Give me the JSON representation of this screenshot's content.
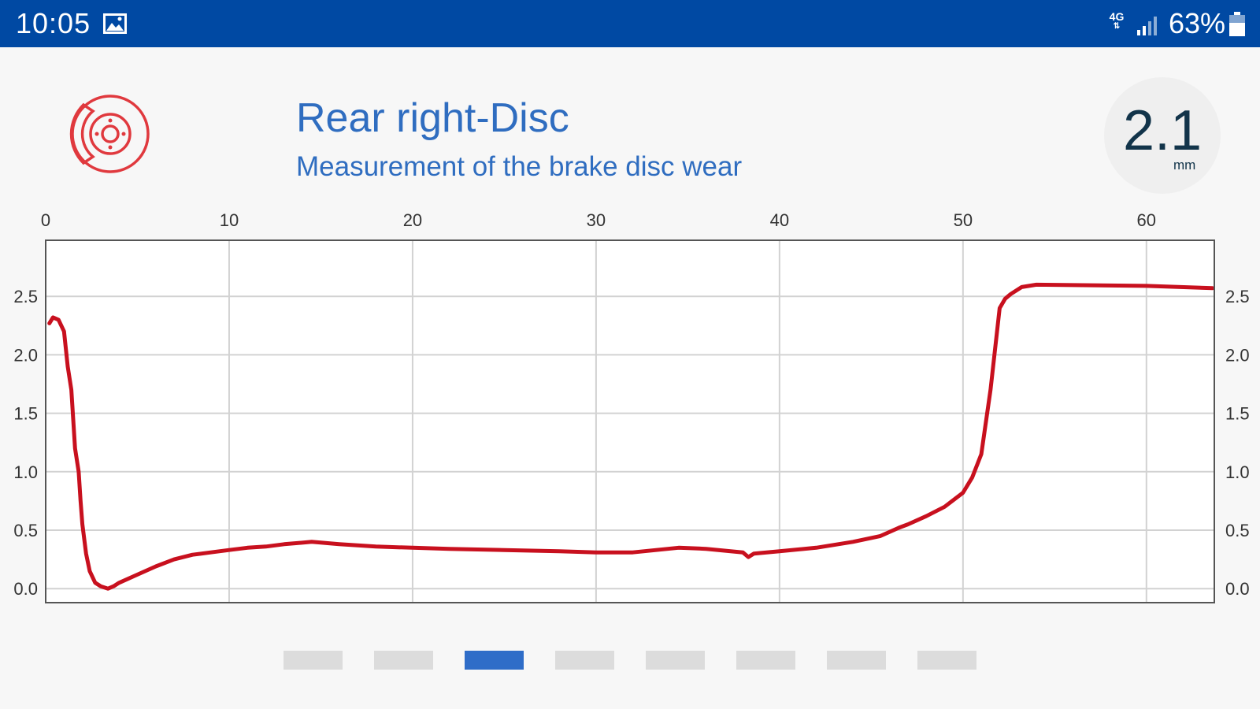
{
  "status_bar": {
    "time": "10:05",
    "network": "4G",
    "battery": "63%",
    "icons": [
      "gallery-icon",
      "network-4g-icon",
      "signal-icon",
      "battery-icon"
    ],
    "background": "#0049a3"
  },
  "header": {
    "icon": "brake-disc-icon",
    "icon_color": "#e0393e",
    "title": "Rear right-Disc",
    "subtitle": "Measurement of the brake disc wear",
    "title_color": "#2f6dc0",
    "reading_value": "2.1",
    "reading_unit": "mm"
  },
  "chart_data": {
    "type": "line",
    "title": "",
    "xlabel": "",
    "ylabel": "",
    "xlim": [
      0,
      63.7
    ],
    "ylim": [
      -0.12,
      2.98
    ],
    "x_ticks": [
      "0",
      "10",
      "20",
      "30",
      "40",
      "50",
      "60"
    ],
    "y_ticks": [
      "0.0",
      "0.5",
      "1.0",
      "1.5",
      "2.0",
      "2.5"
    ],
    "grid": true,
    "line_color": "#c8101e",
    "series": [
      {
        "x": [
          0.2,
          0.4,
          0.7,
          1.0,
          1.2,
          1.4,
          1.6,
          1.8,
          1.9,
          2.0,
          2.2,
          2.4,
          2.7,
          3.0,
          3.4,
          3.7,
          4.0,
          5.0,
          6.0,
          7.0,
          8.0,
          9.0,
          10.0,
          11.0,
          12.0,
          13.0,
          14.5,
          16.0,
          18.0,
          20.0,
          22.0,
          25.0,
          28.0,
          30.0,
          32.0,
          34.5,
          36.0,
          38.0,
          38.3,
          38.6,
          40.0,
          42.0,
          44.0,
          45.5,
          46.5,
          47.0,
          48.0,
          49.0,
          50.0,
          50.5,
          51.0,
          51.5,
          52.0,
          52.3,
          52.6,
          53.2,
          54.0,
          60.0,
          63.6
        ],
        "y": [
          2.27,
          2.32,
          2.3,
          2.2,
          1.9,
          1.7,
          1.2,
          1.0,
          0.75,
          0.55,
          0.3,
          0.15,
          0.05,
          0.02,
          0.0,
          0.02,
          0.05,
          0.12,
          0.19,
          0.25,
          0.29,
          0.31,
          0.33,
          0.35,
          0.36,
          0.38,
          0.4,
          0.38,
          0.36,
          0.35,
          0.34,
          0.33,
          0.32,
          0.31,
          0.31,
          0.35,
          0.34,
          0.31,
          0.27,
          0.3,
          0.32,
          0.35,
          0.4,
          0.45,
          0.52,
          0.55,
          0.62,
          0.7,
          0.82,
          0.95,
          1.15,
          1.7,
          2.4,
          2.48,
          2.52,
          2.58,
          2.6,
          2.59,
          2.57
        ]
      }
    ]
  },
  "pager": {
    "count": 8,
    "active_index": 2
  }
}
